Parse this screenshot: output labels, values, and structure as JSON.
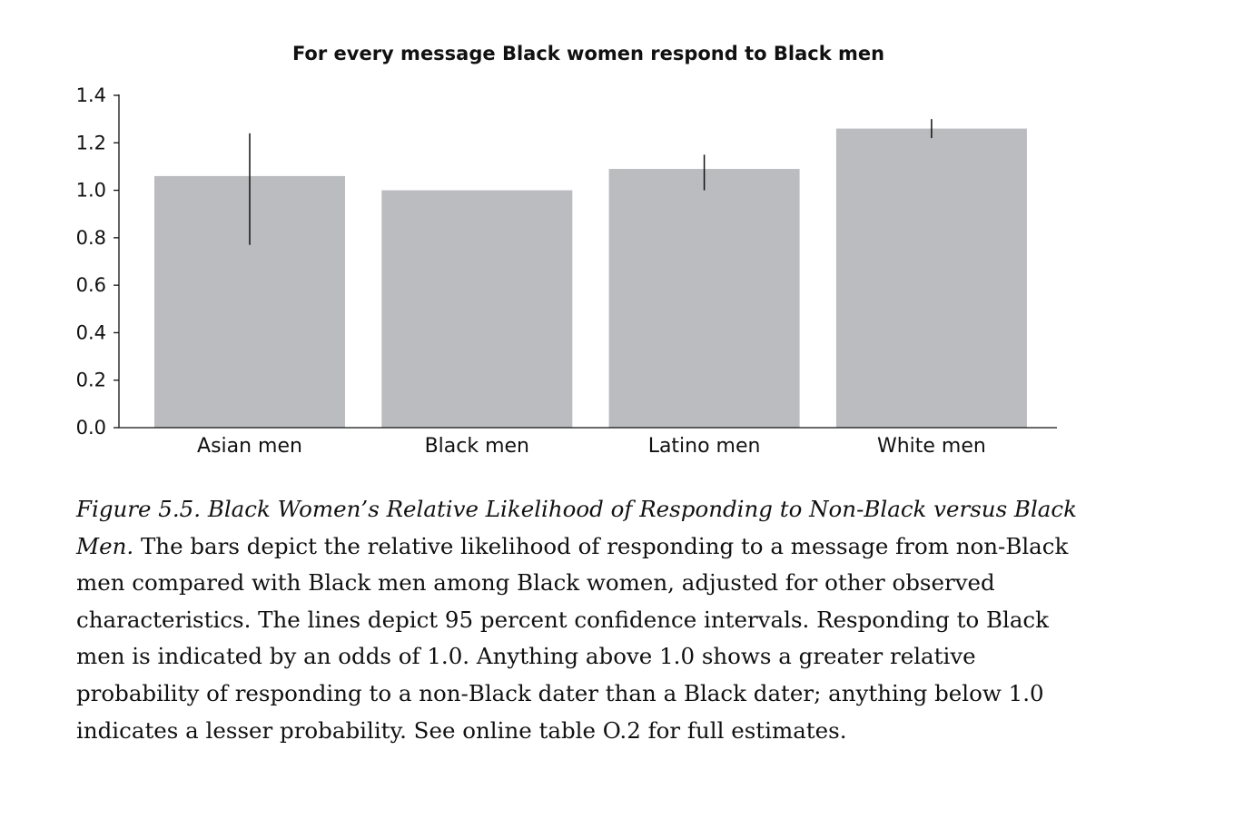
{
  "chart_data": {
    "type": "bar",
    "title": "For every message Black women respond to Black men",
    "categories": [
      "Asian men",
      "Black men",
      "Latino men",
      "White men"
    ],
    "values": [
      1.06,
      1.0,
      1.09,
      1.26
    ],
    "error_bars": [
      {
        "low": 0.77,
        "high": 1.24
      },
      null,
      {
        "low": 1.0,
        "high": 1.15
      },
      {
        "low": 1.22,
        "high": 1.3
      }
    ],
    "ylim": [
      0,
      1.4
    ],
    "yticks": [
      "0.0",
      "0.2",
      "0.4",
      "0.6",
      "0.8",
      "1.0",
      "1.2",
      "1.4"
    ],
    "xlabel": "",
    "ylabel": "",
    "grid": false,
    "bar_color": "#bbbcbf",
    "axis_color": "#111111"
  },
  "caption": {
    "figure_label": "Figure 5.5.  Black Women’s Relative Likelihood of Responding to Non-Black versus Black Men.",
    "text": " The bars depict the relative likelihood of responding to a message from non-Black men compared with Black men among Black women, adjusted for other observed characteristics. The lines depict 95 percent confidence intervals. Responding to Black men is indicated by an odds of 1.0. Anything above 1.0 shows a greater relative probability of responding to a non-Black dater than a Black dater; anything below 1.0 indicates a lesser probability. See online table O.2 for full estimates."
  }
}
